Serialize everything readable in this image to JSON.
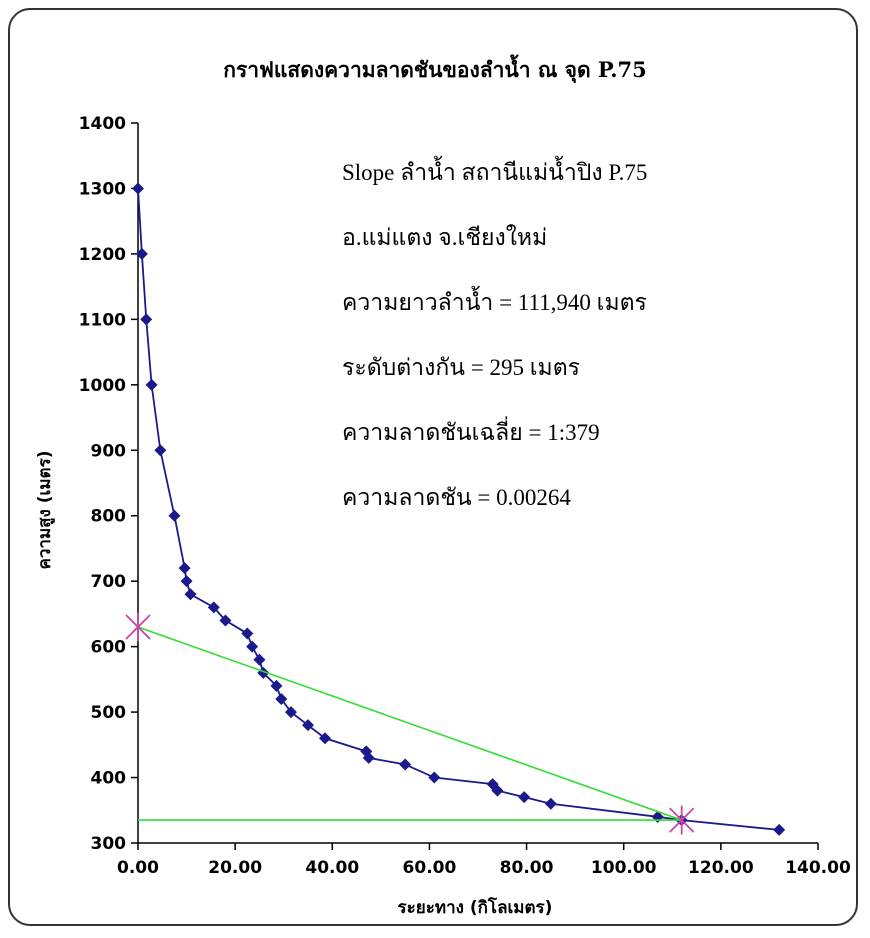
{
  "chart_data": {
    "type": "scatter",
    "title": "กราฟแสดงความลาดชันของลำน้ำ ณ จุด P.75",
    "xlabel": "ระยะทาง (กิโลเมตร)",
    "ylabel": "ความสูง (เมตร)",
    "xlim": [
      0,
      140
    ],
    "ylim": [
      300,
      1400
    ],
    "xticks": [
      "0.00",
      "20.00",
      "40.00",
      "60.00",
      "80.00",
      "100.00",
      "120.00",
      "140.00"
    ],
    "yticks": [
      "300",
      "400",
      "500",
      "600",
      "700",
      "800",
      "900",
      "1000",
      "1100",
      "1200",
      "1300",
      "1400"
    ],
    "grid": false,
    "series": [
      {
        "style": "line-markers",
        "color": "#1a1a8c",
        "x": [
          0.0,
          0.8,
          1.7,
          2.8,
          4.6,
          7.5,
          9.6,
          10.0,
          10.8,
          15.6,
          18.0,
          22.5,
          23.5,
          25.0,
          25.8,
          28.5,
          29.5,
          31.5,
          35.0,
          38.5,
          47.0,
          47.5,
          55.0,
          61.0,
          73.0,
          74.0,
          79.5,
          85.0,
          107.0,
          111.9,
          132.0
        ],
        "y": [
          1300,
          1200,
          1100,
          1000,
          900,
          800,
          720,
          700,
          680,
          660,
          640,
          620,
          600,
          580,
          560,
          540,
          520,
          500,
          480,
          460,
          440,
          430,
          420,
          400,
          390,
          380,
          370,
          360,
          340,
          335,
          320
        ]
      },
      {
        "style": "line",
        "color": "#33dd33",
        "x": [
          0,
          111.94
        ],
        "y": [
          630,
          335
        ]
      },
      {
        "style": "line",
        "color": "#33dd33",
        "x": [
          0,
          111.94
        ],
        "y": [
          335,
          335
        ]
      },
      {
        "style": "star-markers",
        "color": "#cc44aa",
        "x": [
          0,
          111.94
        ],
        "y": [
          630,
          335
        ]
      }
    ],
    "annotations": [
      "Slope ลำน้ำ สถานีแม่น้ำปิง P.75",
      "อ.แม่แตง จ.เชียงใหม่",
      "ความยาวลำน้ำ = 111,940 เมตร",
      "ระดับต่างกัน = 295 เมตร",
      "ความลาดชันเฉลี่ย = 1:379",
      "ความลาดชัน = 0.00264"
    ]
  }
}
